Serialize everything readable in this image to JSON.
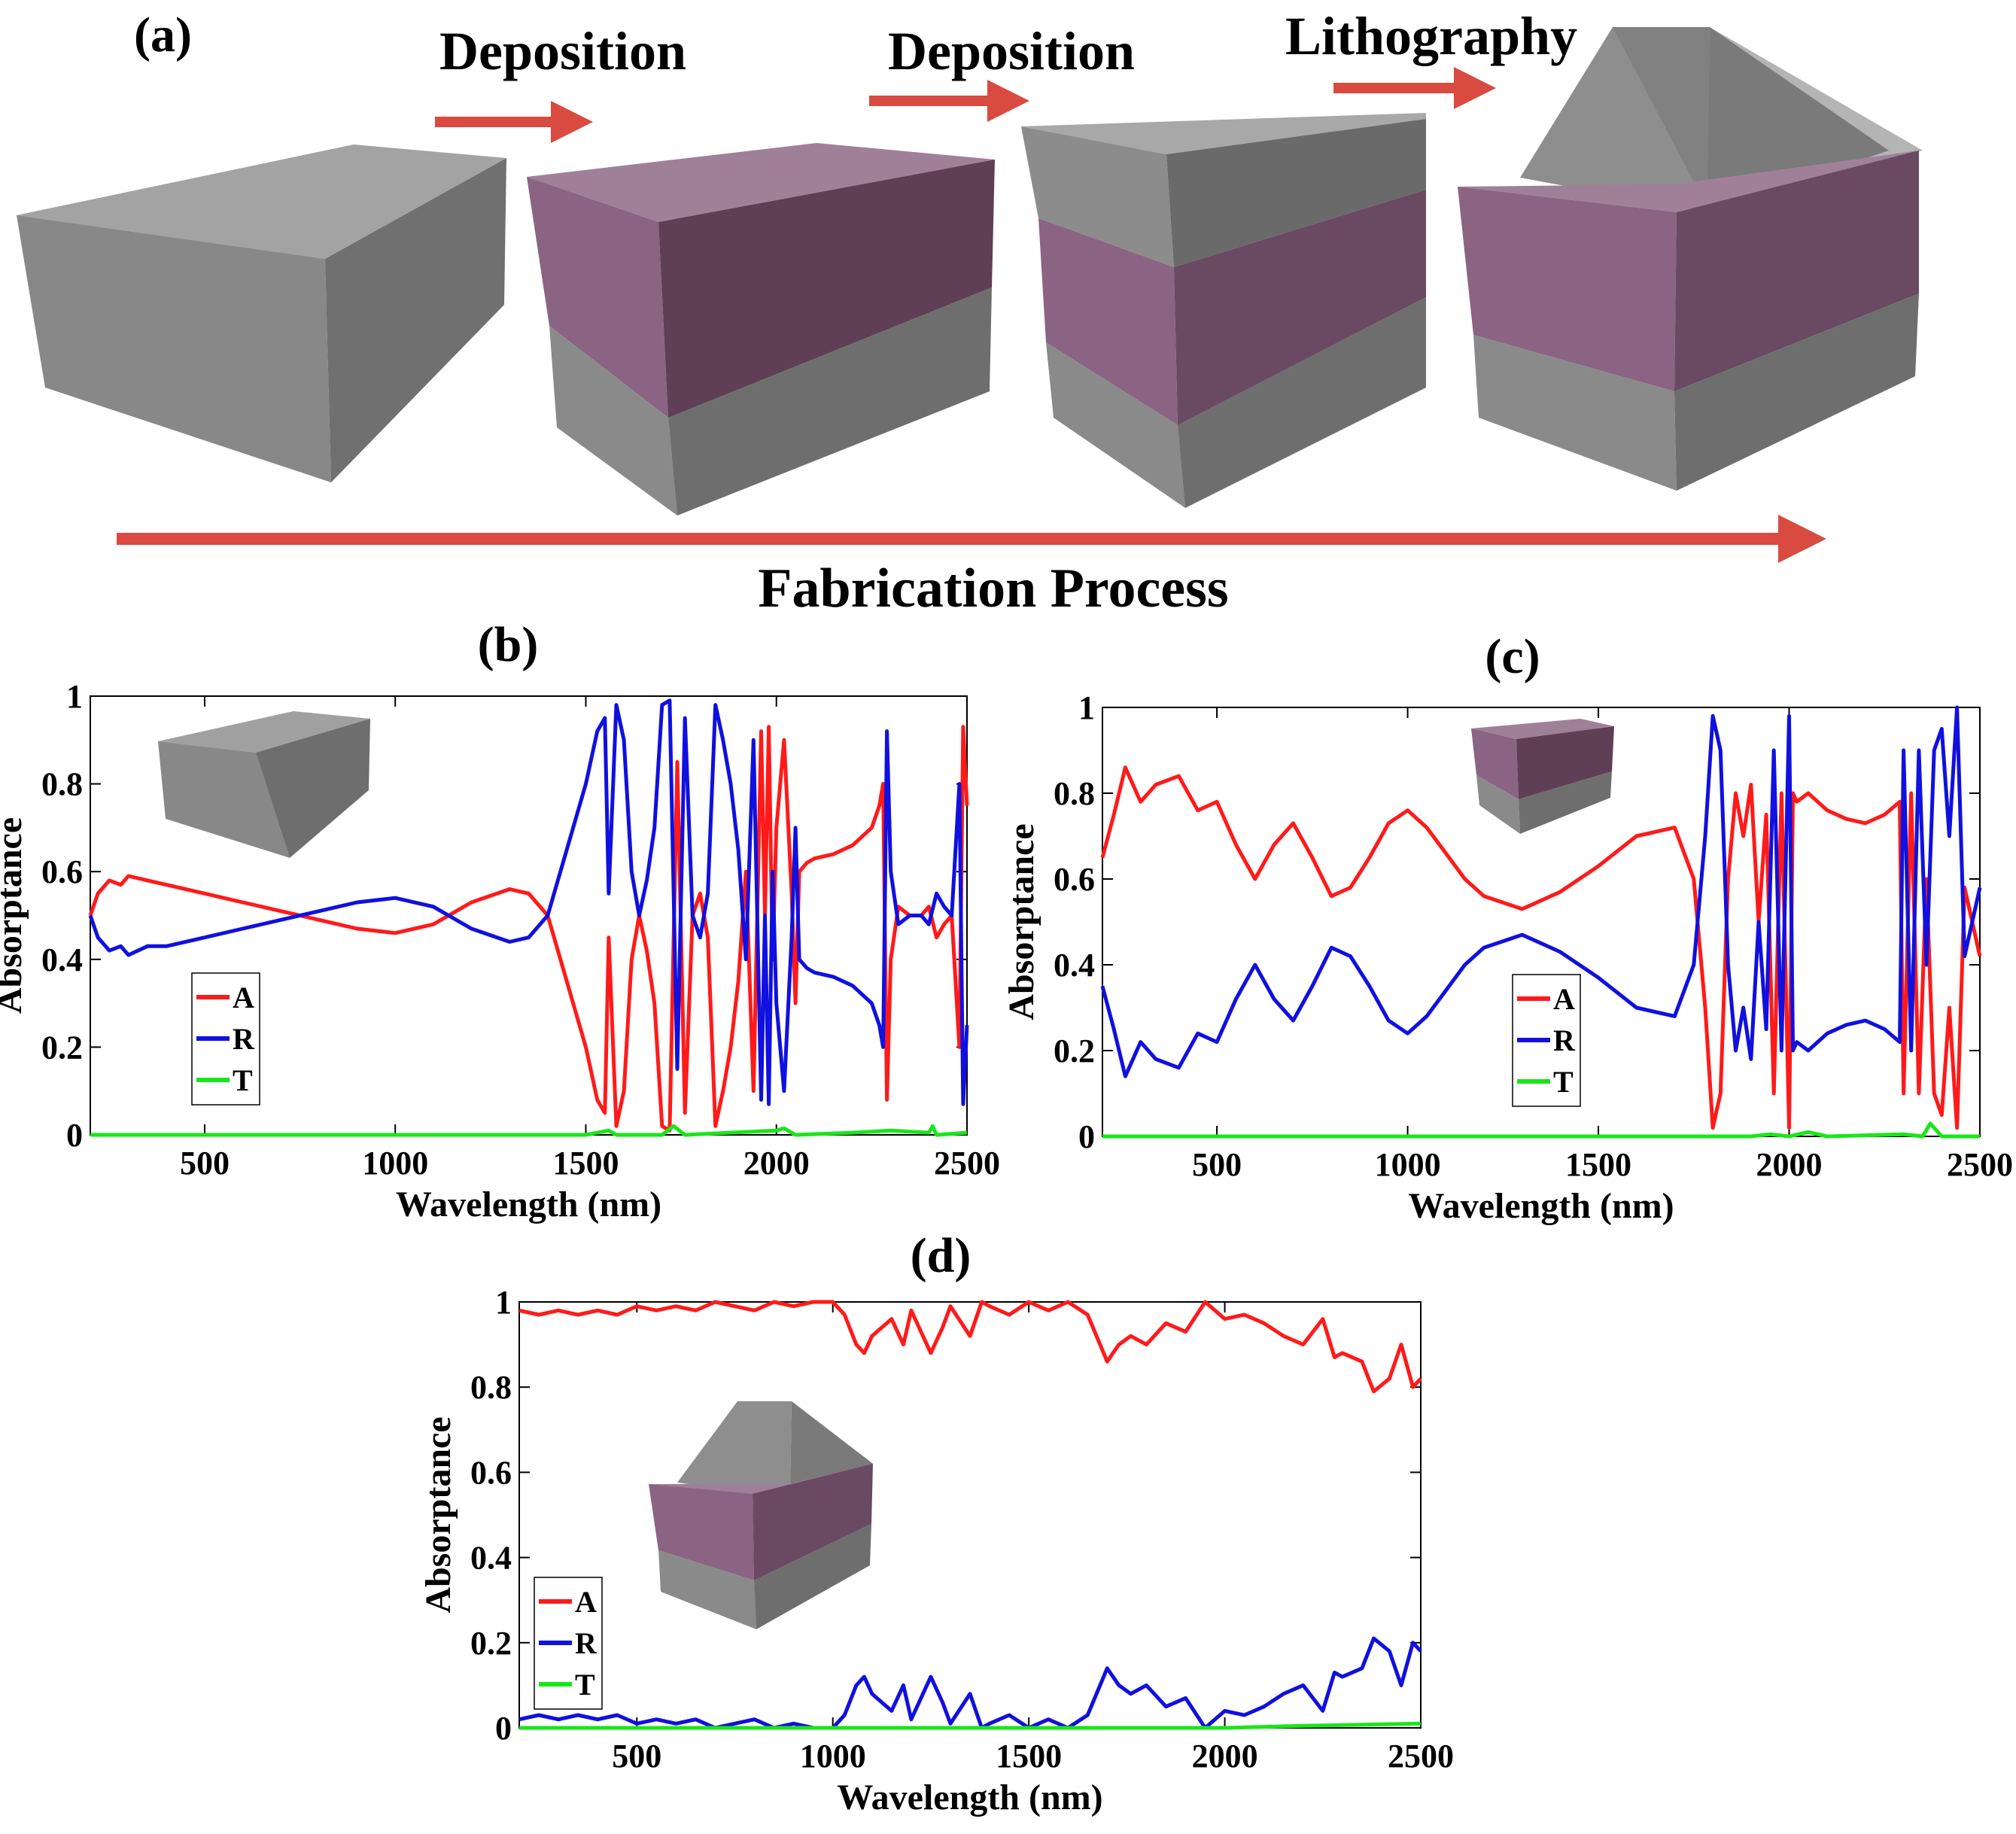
{
  "panel_a": {
    "label": "(a)",
    "steps": [
      "Deposition",
      "Deposition",
      "Lithography"
    ],
    "process_label": "Fabrication Process"
  },
  "colors": {
    "absorptance": "#ff1a1a",
    "reflectance": "#1010e0",
    "transmittance": "#19e619",
    "arrow": "#d94a40",
    "gray_block": "#8a8a8a",
    "purple_layer": "#7d5573"
  },
  "chart_data": [
    {
      "panel": "(b)",
      "type": "line",
      "xlabel": "Wavelength (nm)",
      "ylabel": "Absorptance",
      "xlim": [
        200,
        2500
      ],
      "ylim": [
        0,
        1
      ],
      "xticks": [
        "500",
        "1000",
        "1500",
        "2000",
        "2500"
      ],
      "yticks": [
        "0",
        "0.2",
        "0.4",
        "0.6",
        "0.8",
        "1"
      ],
      "legend": [
        "A",
        "R",
        "T"
      ],
      "series": [
        {
          "name": "A",
          "x": [
            200,
            220,
            250,
            280,
            300,
            350,
            400,
            500,
            600,
            700,
            800,
            900,
            1000,
            1100,
            1200,
            1300,
            1350,
            1400,
            1450,
            1500,
            1530,
            1550,
            1560,
            1580,
            1600,
            1620,
            1640,
            1660,
            1680,
            1700,
            1720,
            1740,
            1760,
            1780,
            1800,
            1820,
            1840,
            1860,
            1880,
            1900,
            1920,
            1940,
            1960,
            1970,
            1980,
            1990,
            2000,
            2020,
            2040,
            2050,
            2060,
            2080,
            2100,
            2150,
            2200,
            2250,
            2270,
            2280,
            2290,
            2300,
            2320,
            2350,
            2380,
            2400,
            2420,
            2440,
            2460,
            2480,
            2490,
            2500
          ],
          "values": [
            0.5,
            0.55,
            0.58,
            0.57,
            0.59,
            0.58,
            0.57,
            0.55,
            0.53,
            0.51,
            0.49,
            0.47,
            0.46,
            0.48,
            0.53,
            0.56,
            0.55,
            0.5,
            0.35,
            0.2,
            0.08,
            0.05,
            0.45,
            0.02,
            0.1,
            0.4,
            0.5,
            0.42,
            0.3,
            0.02,
            0.01,
            0.85,
            0.05,
            0.5,
            0.55,
            0.45,
            0.02,
            0.1,
            0.2,
            0.35,
            0.6,
            0.1,
            0.92,
            0.5,
            0.93,
            0.4,
            0.7,
            0.9,
            0.55,
            0.3,
            0.6,
            0.62,
            0.63,
            0.64,
            0.66,
            0.7,
            0.75,
            0.8,
            0.08,
            0.4,
            0.52,
            0.5,
            0.5,
            0.52,
            0.45,
            0.48,
            0.5,
            0.2,
            0.93,
            0.75
          ]
        },
        {
          "name": "R",
          "x": [
            200,
            220,
            250,
            280,
            300,
            350,
            400,
            500,
            600,
            700,
            800,
            900,
            1000,
            1100,
            1200,
            1300,
            1350,
            1400,
            1450,
            1500,
            1530,
            1550,
            1560,
            1580,
            1600,
            1620,
            1640,
            1660,
            1680,
            1700,
            1720,
            1740,
            1760,
            1780,
            1800,
            1820,
            1840,
            1860,
            1880,
            1900,
            1920,
            1940,
            1960,
            1970,
            1980,
            1990,
            2000,
            2020,
            2040,
            2050,
            2060,
            2080,
            2100,
            2150,
            2200,
            2250,
            2270,
            2280,
            2290,
            2300,
            2320,
            2350,
            2380,
            2400,
            2420,
            2440,
            2460,
            2480,
            2490,
            2500
          ],
          "values": [
            0.5,
            0.45,
            0.42,
            0.43,
            0.41,
            0.43,
            0.43,
            0.45,
            0.47,
            0.49,
            0.51,
            0.53,
            0.54,
            0.52,
            0.47,
            0.44,
            0.45,
            0.5,
            0.65,
            0.8,
            0.92,
            0.95,
            0.55,
            0.98,
            0.9,
            0.6,
            0.5,
            0.58,
            0.7,
            0.98,
            0.99,
            0.15,
            0.95,
            0.5,
            0.45,
            0.55,
            0.98,
            0.9,
            0.8,
            0.65,
            0.4,
            0.9,
            0.08,
            0.5,
            0.07,
            0.6,
            0.3,
            0.1,
            0.45,
            0.7,
            0.4,
            0.38,
            0.37,
            0.36,
            0.34,
            0.3,
            0.25,
            0.2,
            0.92,
            0.6,
            0.48,
            0.5,
            0.5,
            0.48,
            0.55,
            0.52,
            0.5,
            0.8,
            0.07,
            0.25
          ]
        },
        {
          "name": "T",
          "x": [
            200,
            500,
            1000,
            1500,
            1560,
            1580,
            1700,
            1730,
            1760,
            2000,
            2020,
            2050,
            2200,
            2300,
            2400,
            2410,
            2420,
            2500
          ],
          "values": [
            0,
            0,
            0,
            0,
            0.01,
            0,
            0,
            0.02,
            0,
            0.01,
            0.015,
            0,
            0.005,
            0.01,
            0.005,
            0.02,
            0,
            0.005
          ]
        }
      ]
    },
    {
      "panel": "(c)",
      "type": "line",
      "xlabel": "Wavelength (nm)",
      "ylabel": "Absorptance",
      "xlim": [
        200,
        2500
      ],
      "ylim": [
        0,
        1
      ],
      "xticks": [
        "500",
        "1000",
        "1500",
        "2000",
        "2500"
      ],
      "yticks": [
        "0",
        "0.2",
        "0.4",
        "0.6",
        "0.8",
        "1"
      ],
      "legend": [
        "A",
        "R",
        "T"
      ],
      "series": [
        {
          "name": "A",
          "x": [
            200,
            230,
            260,
            300,
            340,
            400,
            450,
            500,
            550,
            600,
            650,
            700,
            750,
            800,
            850,
            900,
            950,
            1000,
            1050,
            1100,
            1150,
            1200,
            1300,
            1400,
            1500,
            1600,
            1700,
            1750,
            1780,
            1800,
            1820,
            1840,
            1860,
            1880,
            1900,
            1920,
            1940,
            1960,
            1980,
            2000,
            2010,
            2020,
            2050,
            2100,
            2150,
            2200,
            2250,
            2290,
            2300,
            2320,
            2340,
            2360,
            2380,
            2400,
            2420,
            2440,
            2460,
            2500
          ],
          "values": [
            0.65,
            0.75,
            0.86,
            0.78,
            0.82,
            0.84,
            0.76,
            0.78,
            0.68,
            0.6,
            0.68,
            0.73,
            0.65,
            0.56,
            0.58,
            0.65,
            0.73,
            0.76,
            0.72,
            0.66,
            0.6,
            0.56,
            0.53,
            0.57,
            0.63,
            0.7,
            0.72,
            0.6,
            0.3,
            0.02,
            0.1,
            0.6,
            0.8,
            0.7,
            0.82,
            0.5,
            0.75,
            0.1,
            0.8,
            0.02,
            0.8,
            0.78,
            0.8,
            0.76,
            0.74,
            0.73,
            0.75,
            0.78,
            0.1,
            0.8,
            0.1,
            0.6,
            0.1,
            0.05,
            0.3,
            0.02,
            0.58,
            0.42
          ]
        },
        {
          "name": "R",
          "x": [
            200,
            230,
            260,
            300,
            340,
            400,
            450,
            500,
            550,
            600,
            650,
            700,
            750,
            800,
            850,
            900,
            950,
            1000,
            1050,
            1100,
            1150,
            1200,
            1300,
            1400,
            1500,
            1600,
            1700,
            1750,
            1780,
            1800,
            1820,
            1840,
            1860,
            1880,
            1900,
            1920,
            1940,
            1960,
            1980,
            2000,
            2010,
            2020,
            2050,
            2100,
            2150,
            2200,
            2250,
            2290,
            2300,
            2320,
            2340,
            2360,
            2380,
            2400,
            2420,
            2440,
            2460,
            2500
          ],
          "values": [
            0.35,
            0.25,
            0.14,
            0.22,
            0.18,
            0.16,
            0.24,
            0.22,
            0.32,
            0.4,
            0.32,
            0.27,
            0.35,
            0.44,
            0.42,
            0.35,
            0.27,
            0.24,
            0.28,
            0.34,
            0.4,
            0.44,
            0.47,
            0.43,
            0.37,
            0.3,
            0.28,
            0.4,
            0.7,
            0.98,
            0.9,
            0.4,
            0.2,
            0.3,
            0.18,
            0.5,
            0.25,
            0.9,
            0.2,
            0.98,
            0.2,
            0.22,
            0.2,
            0.24,
            0.26,
            0.27,
            0.25,
            0.22,
            0.9,
            0.2,
            0.9,
            0.4,
            0.9,
            0.95,
            0.7,
            1.0,
            0.42,
            0.58
          ]
        },
        {
          "name": "T",
          "x": [
            200,
            500,
            1000,
            1500,
            1900,
            1950,
            2000,
            2050,
            2100,
            2300,
            2350,
            2370,
            2400,
            2500
          ],
          "values": [
            0,
            0,
            0,
            0,
            0,
            0.005,
            0,
            0.01,
            0,
            0.005,
            0,
            0.03,
            0,
            0
          ]
        }
      ]
    },
    {
      "panel": "(d)",
      "type": "line",
      "xlabel": "Wavelength (nm)",
      "ylabel": "Absorptance",
      "xlim": [
        200,
        2500
      ],
      "ylim": [
        0,
        1
      ],
      "xticks": [
        "500",
        "1000",
        "1500",
        "2000",
        "2500"
      ],
      "yticks": [
        "0",
        "0.2",
        "0.4",
        "0.6",
        "0.8",
        "1"
      ],
      "legend": [
        "A",
        "R",
        "T"
      ],
      "series": [
        {
          "name": "A",
          "x": [
            200,
            250,
            300,
            350,
            400,
            450,
            500,
            550,
            600,
            650,
            700,
            750,
            800,
            850,
            900,
            950,
            1000,
            1030,
            1060,
            1080,
            1100,
            1150,
            1180,
            1200,
            1250,
            1280,
            1300,
            1350,
            1380,
            1400,
            1450,
            1500,
            1550,
            1600,
            1650,
            1700,
            1730,
            1760,
            1800,
            1850,
            1900,
            1950,
            2000,
            2050,
            2100,
            2150,
            2200,
            2250,
            2280,
            2300,
            2350,
            2380,
            2420,
            2450,
            2480,
            2500
          ],
          "values": [
            0.98,
            0.97,
            0.98,
            0.97,
            0.98,
            0.97,
            0.99,
            0.98,
            0.99,
            0.98,
            1.0,
            0.99,
            0.98,
            1.0,
            0.99,
            1.0,
            1.0,
            0.97,
            0.9,
            0.88,
            0.92,
            0.96,
            0.9,
            0.98,
            0.88,
            0.94,
            0.99,
            0.92,
            1.0,
            0.99,
            0.97,
            1.0,
            0.98,
            1.0,
            0.97,
            0.86,
            0.9,
            0.92,
            0.9,
            0.95,
            0.93,
            1.0,
            0.96,
            0.97,
            0.95,
            0.92,
            0.9,
            0.96,
            0.87,
            0.88,
            0.86,
            0.79,
            0.82,
            0.9,
            0.8,
            0.82
          ]
        },
        {
          "name": "R",
          "x": [
            200,
            250,
            300,
            350,
            400,
            450,
            500,
            550,
            600,
            650,
            700,
            750,
            800,
            850,
            900,
            950,
            1000,
            1030,
            1060,
            1080,
            1100,
            1150,
            1180,
            1200,
            1250,
            1280,
            1300,
            1350,
            1380,
            1400,
            1450,
            1500,
            1550,
            1600,
            1650,
            1700,
            1730,
            1760,
            1800,
            1850,
            1900,
            1950,
            2000,
            2050,
            2100,
            2150,
            2200,
            2250,
            2280,
            2300,
            2350,
            2380,
            2420,
            2450,
            2480,
            2500
          ],
          "values": [
            0.02,
            0.03,
            0.02,
            0.03,
            0.02,
            0.03,
            0.01,
            0.02,
            0.01,
            0.02,
            0.0,
            0.01,
            0.02,
            0.0,
            0.01,
            0.0,
            0.0,
            0.03,
            0.1,
            0.12,
            0.08,
            0.04,
            0.1,
            0.02,
            0.12,
            0.06,
            0.01,
            0.08,
            0.0,
            0.01,
            0.03,
            0.0,
            0.02,
            0.0,
            0.03,
            0.14,
            0.1,
            0.08,
            0.1,
            0.05,
            0.07,
            0.0,
            0.04,
            0.03,
            0.05,
            0.08,
            0.1,
            0.04,
            0.13,
            0.12,
            0.14,
            0.21,
            0.18,
            0.1,
            0.2,
            0.18
          ]
        },
        {
          "name": "T",
          "x": [
            200,
            500,
            1000,
            1500,
            2000,
            2200,
            2500
          ],
          "values": [
            0,
            0,
            0,
            0,
            0,
            0.005,
            0.01
          ]
        }
      ]
    }
  ]
}
